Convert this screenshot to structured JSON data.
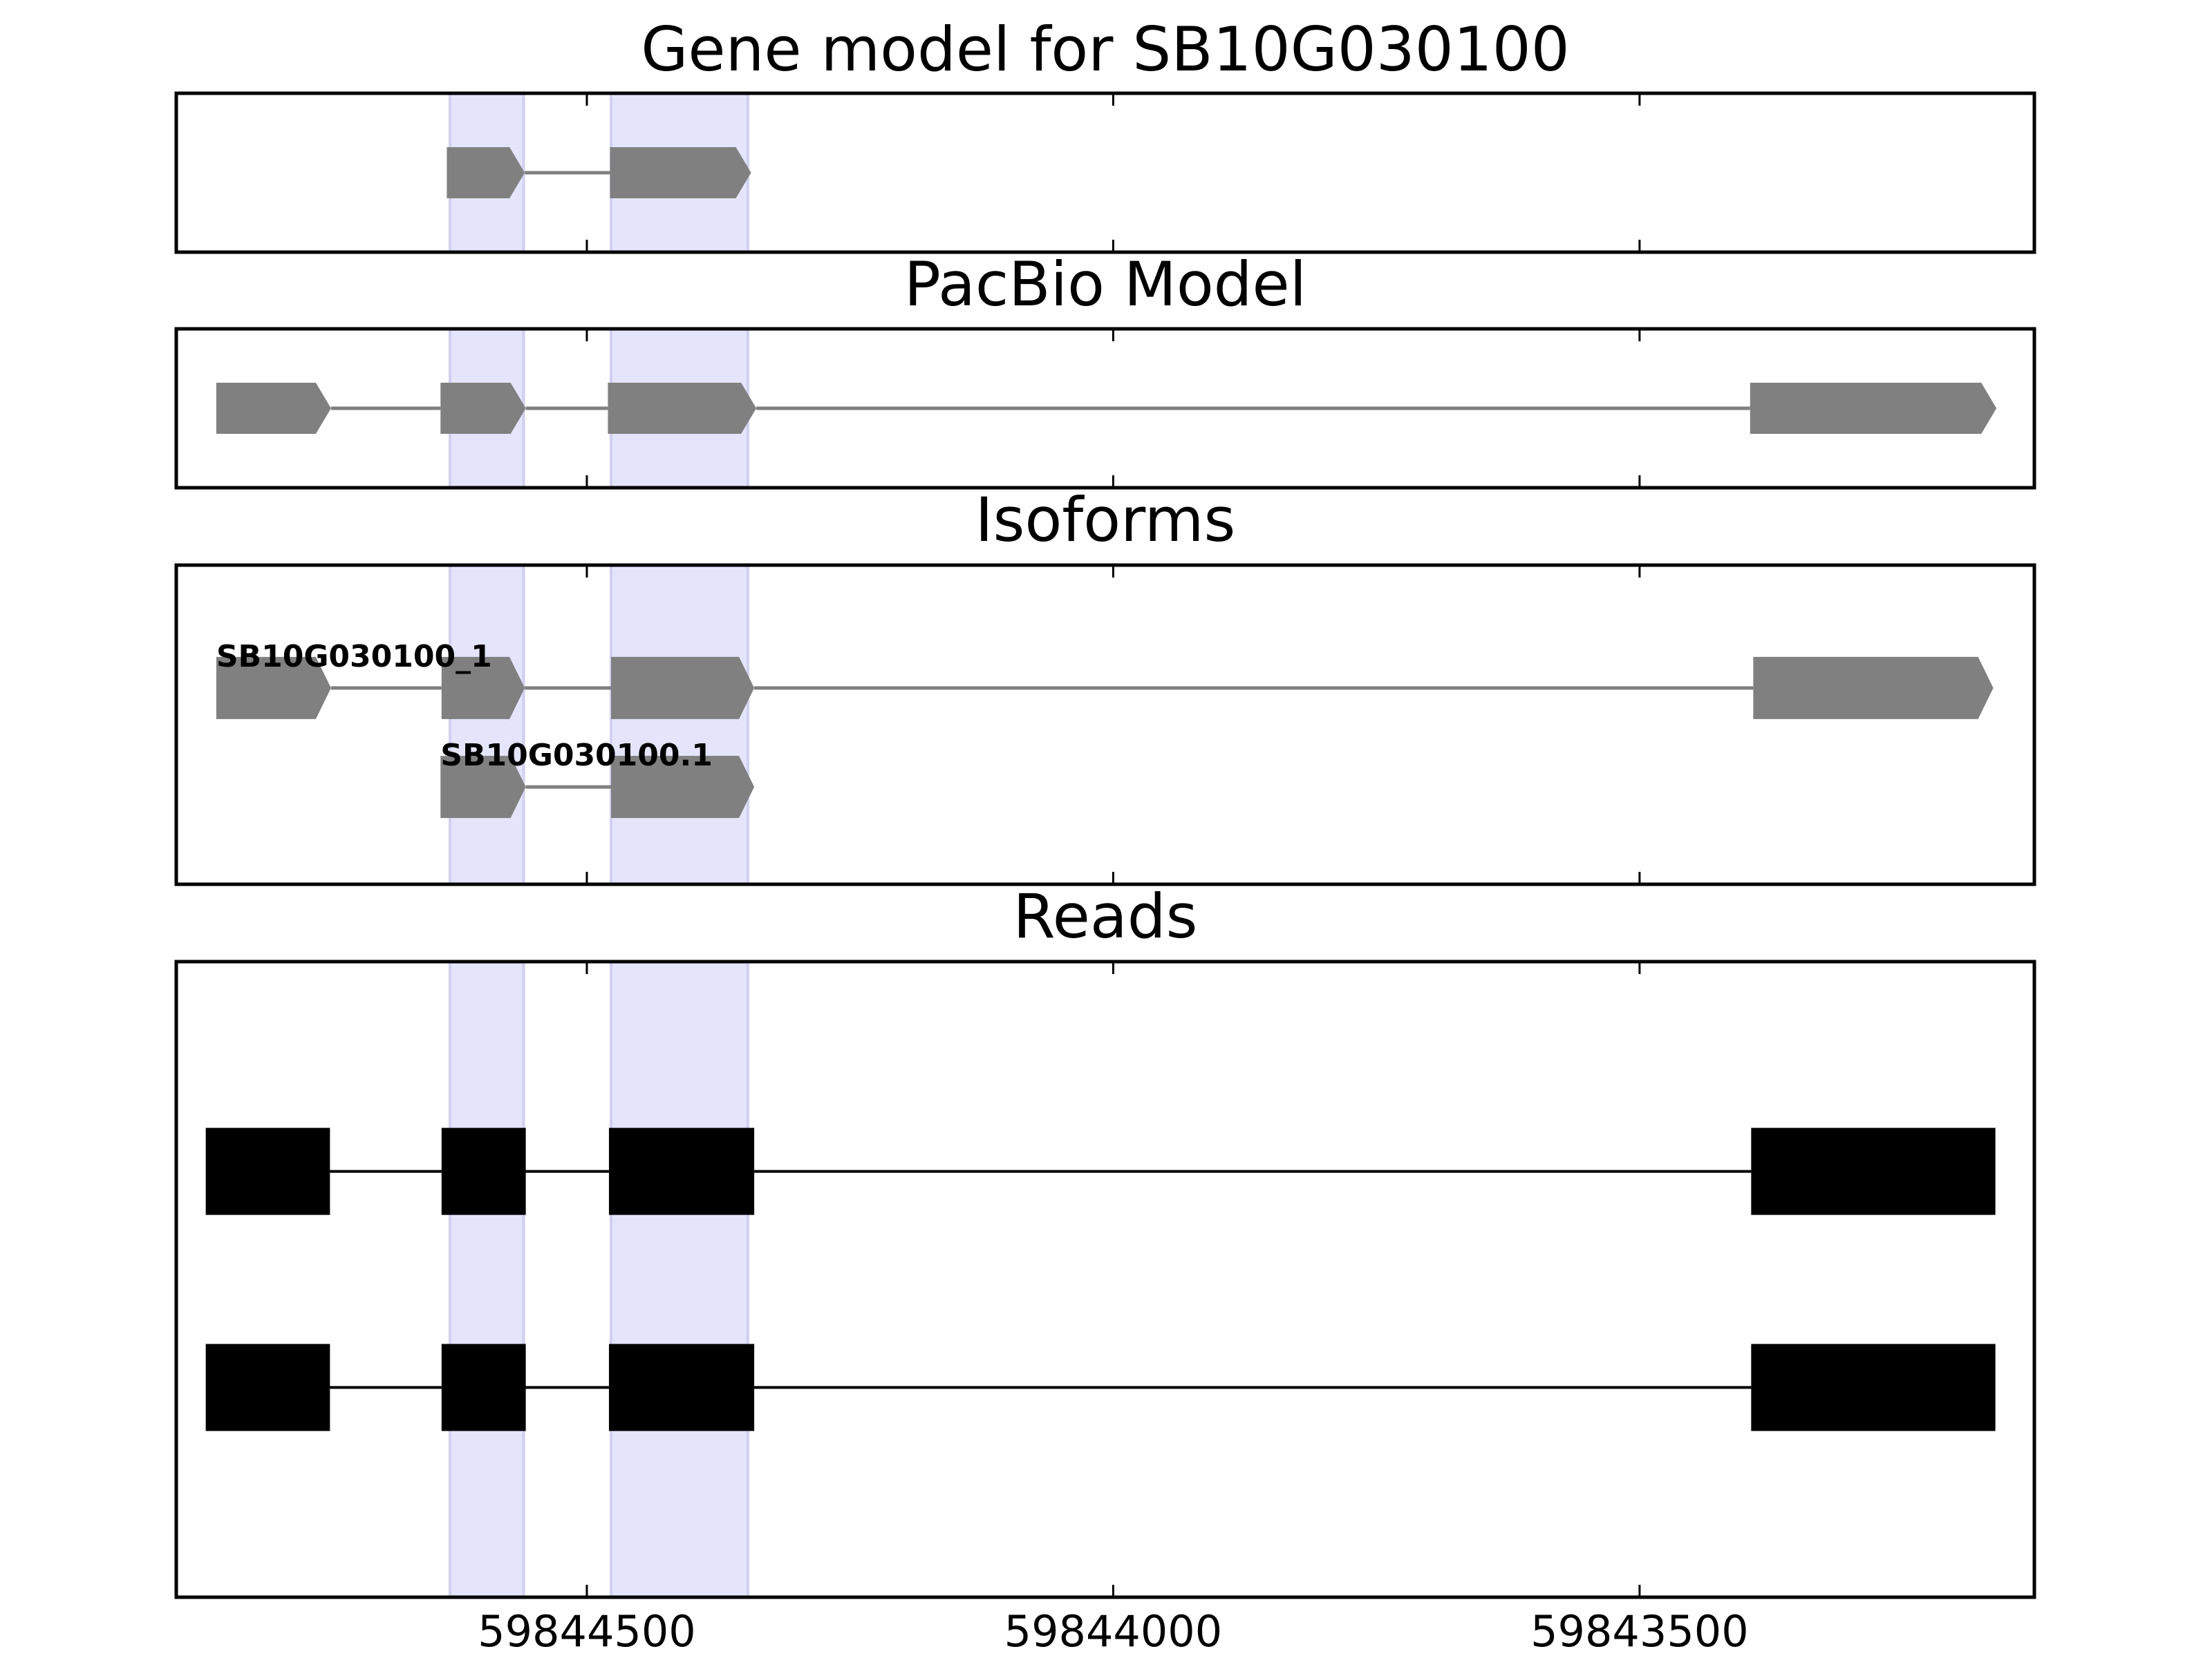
{
  "chart_data": [
    {
      "type": "gene-track",
      "title": "Gene model for SB10G030100",
      "xlim": [
        59844890,
        59843125
      ],
      "xticks": [
        59844500,
        59844000,
        59843500
      ],
      "tick_labels": false,
      "color": "#808080",
      "arrows": true,
      "highlights": [
        [
          59844630,
          59844560
        ],
        [
          59844477,
          59844347
        ]
      ],
      "features": [
        {
          "exons": [
            [
              59844633,
              59844559
            ],
            [
              59844478,
              59844344
            ]
          ]
        }
      ]
    },
    {
      "type": "gene-track",
      "title": "PacBio Model",
      "xlim": [
        59844890,
        59843125
      ],
      "xticks": [
        59844500,
        59844000,
        59843500
      ],
      "tick_labels": false,
      "color": "#808080",
      "arrows": true,
      "highlights": [
        [
          59844630,
          59844560
        ],
        [
          59844477,
          59844347
        ]
      ],
      "features": [
        {
          "exons": [
            [
              59844852,
              59844743
            ],
            [
              59844639,
              59844558
            ],
            [
              59844480,
              59844339
            ],
            [
              59843395,
              59843161
            ]
          ]
        }
      ]
    },
    {
      "type": "gene-track",
      "title": "Isoforms",
      "xlim": [
        59844890,
        59843125
      ],
      "xticks": [
        59844500,
        59844000,
        59843500
      ],
      "tick_labels": false,
      "color": "#808080",
      "arrows": true,
      "highlights": [
        [
          59844630,
          59844560
        ],
        [
          59844477,
          59844347
        ]
      ],
      "features": [
        {
          "name": "SB10G030100_1",
          "exons": [
            [
              59844852,
              59844743
            ],
            [
              59844638,
              59844559
            ],
            [
              59844477,
              59844341
            ],
            [
              59843392,
              59843164
            ]
          ]
        },
        {
          "name": "SB10G030100.1",
          "exons": [
            [
              59844639,
              59844558
            ],
            [
              59844477,
              59844341
            ]
          ]
        }
      ]
    },
    {
      "type": "gene-track",
      "title": "Reads",
      "xlim": [
        59844890,
        59843125
      ],
      "xticks": [
        59844500,
        59844000,
        59843500
      ],
      "tick_labels": true,
      "color": "#000000",
      "arrows": false,
      "highlights": [
        [
          59844630,
          59844560
        ],
        [
          59844477,
          59844347
        ]
      ],
      "features": [
        {
          "exons": [
            [
              59844862,
              59844744
            ],
            [
              59844638,
              59844558
            ],
            [
              59844479,
              59844341
            ],
            [
              59843394,
              59843162
            ]
          ]
        },
        {
          "exons": [
            [
              59844862,
              59844744
            ],
            [
              59844638,
              59844558
            ],
            [
              59844479,
              59844341
            ],
            [
              59843394,
              59843162
            ]
          ]
        }
      ]
    }
  ]
}
